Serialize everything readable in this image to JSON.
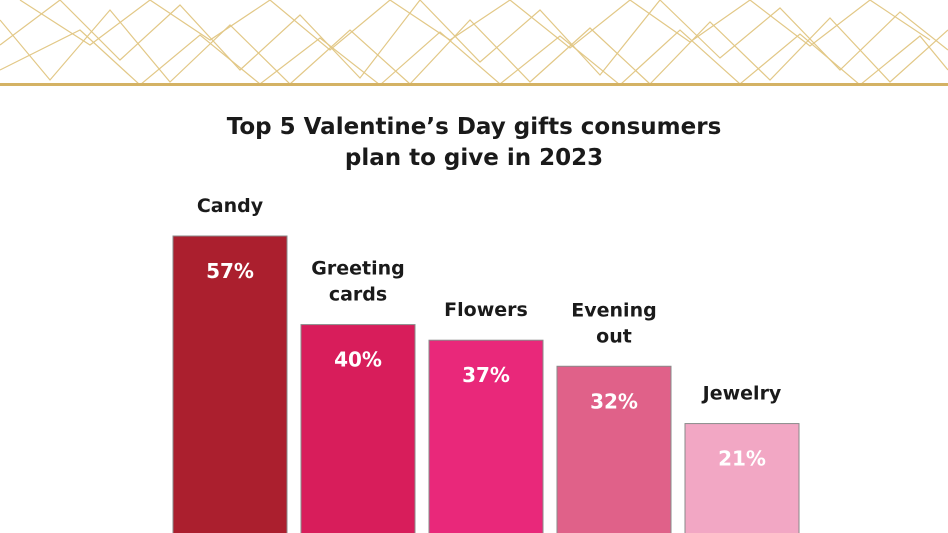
{
  "chart_data": {
    "type": "bar",
    "title_line1": "Top 5 Valentine’s Day gifts consumers",
    "title_line2": "plan to give in 2023",
    "categories": [
      [
        "Candy"
      ],
      [
        "Greeting",
        "cards"
      ],
      [
        "Flowers"
      ],
      [
        "Evening",
        "out"
      ],
      [
        "Jewelry"
      ]
    ],
    "values": [
      57,
      40,
      37,
      32,
      21
    ],
    "value_labels": [
      "57%",
      "40%",
      "37%",
      "32%",
      "21%"
    ],
    "bar_colors": [
      "#ab1f2e",
      "#d81d5b",
      "#e9287a",
      "#e06189",
      "#f2a7c4"
    ],
    "ylim": [
      0,
      100
    ],
    "xlabel": "",
    "ylabel": ""
  },
  "theme": {
    "banner_line_color": "#e2c887",
    "banner_bottom_color": "#d4b264"
  }
}
